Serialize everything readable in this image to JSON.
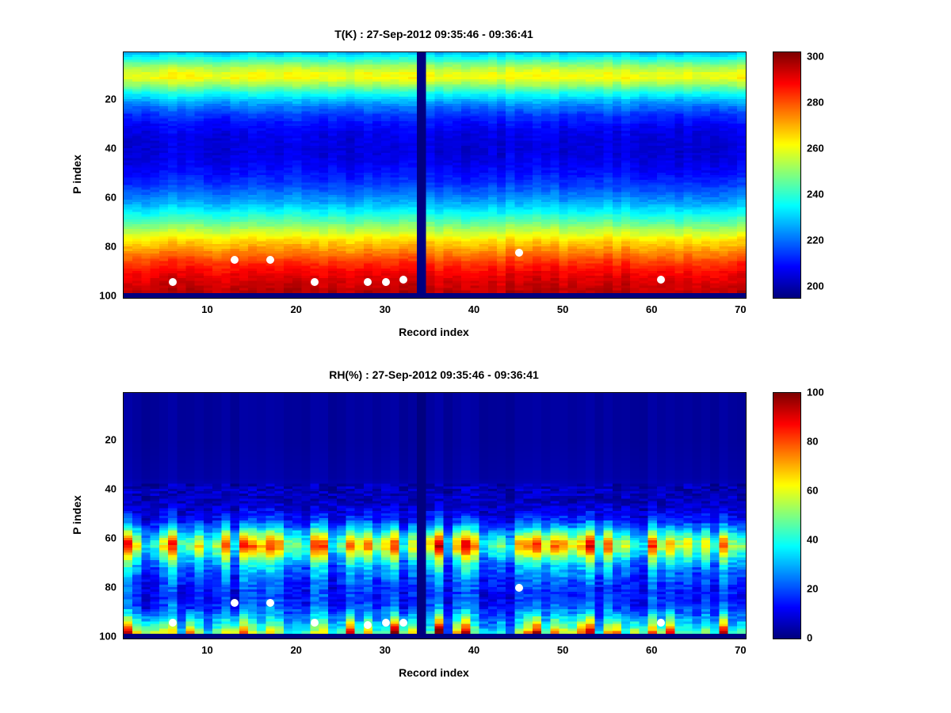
{
  "figure": {
    "background": "#ffffff"
  },
  "chart_data": [
    {
      "type": "heatmap",
      "title": "T(K) : 27-Sep-2012 09:35:46 - 09:36:41",
      "xlabel": "Record index",
      "ylabel": "P index",
      "x_range": [
        1,
        70
      ],
      "y_range": [
        1,
        100
      ],
      "y_axis_reversed": true,
      "x_ticks": [
        10,
        20,
        30,
        40,
        50,
        60,
        70
      ],
      "y_ticks": [
        20,
        40,
        60,
        80,
        100
      ],
      "clim": [
        195,
        302
      ],
      "colorbar_ticks": [
        200,
        220,
        240,
        260,
        280,
        300
      ],
      "colormap": "jet",
      "gap_columns": [
        34
      ],
      "missing_from_row": 99,
      "profile": [
        [
          1,
          229
        ],
        [
          3,
          238
        ],
        [
          5,
          247
        ],
        [
          7,
          254
        ],
        [
          9,
          260
        ],
        [
          11,
          261
        ],
        [
          13,
          254
        ],
        [
          15,
          246
        ],
        [
          17,
          238
        ],
        [
          20,
          228
        ],
        [
          23,
          220
        ],
        [
          26,
          214
        ],
        [
          30,
          209
        ],
        [
          34,
          206
        ],
        [
          38,
          205
        ],
        [
          42,
          205
        ],
        [
          46,
          207
        ],
        [
          50,
          210
        ],
        [
          54,
          214
        ],
        [
          58,
          220
        ],
        [
          62,
          227
        ],
        [
          66,
          236
        ],
        [
          70,
          246
        ],
        [
          74,
          257
        ],
        [
          78,
          267
        ],
        [
          82,
          275
        ],
        [
          86,
          283
        ],
        [
          90,
          289
        ],
        [
          94,
          293
        ],
        [
          98,
          296
        ]
      ],
      "col_noise": 2.5,
      "cell_noise": 2,
      "cell_noise_from": 1,
      "markers": [
        [
          6,
          94
        ],
        [
          13,
          85
        ],
        [
          17,
          85
        ],
        [
          22,
          94
        ],
        [
          28,
          94
        ],
        [
          30,
          94
        ],
        [
          32,
          93
        ],
        [
          45,
          82
        ],
        [
          61,
          93
        ]
      ],
      "marker_color": "#ffffff"
    },
    {
      "type": "heatmap",
      "title": "RH(%) : 27-Sep-2012 09:35:46 - 09:36:41",
      "xlabel": "Record index",
      "ylabel": "P index",
      "x_range": [
        1,
        70
      ],
      "y_range": [
        1,
        100
      ],
      "y_axis_reversed": true,
      "x_ticks": [
        10,
        20,
        30,
        40,
        50,
        60,
        70
      ],
      "y_ticks": [
        20,
        40,
        60,
        80,
        100
      ],
      "clim": [
        0,
        100
      ],
      "colorbar_ticks": [
        0,
        20,
        40,
        60,
        80,
        100
      ],
      "colormap": "jet",
      "gap_columns": [
        34
      ],
      "missing_from_row": 99,
      "profile": [
        [
          1,
          3
        ],
        [
          20,
          3
        ],
        [
          35,
          4
        ],
        [
          40,
          6
        ],
        [
          44,
          6
        ],
        [
          48,
          9
        ],
        [
          52,
          15
        ],
        [
          55,
          26
        ],
        [
          58,
          42
        ],
        [
          61,
          58
        ],
        [
          63,
          62
        ],
        [
          65,
          55
        ],
        [
          68,
          40
        ],
        [
          71,
          30
        ],
        [
          74,
          24
        ],
        [
          78,
          19
        ],
        [
          82,
          16
        ],
        [
          85,
          17
        ],
        [
          88,
          20
        ],
        [
          91,
          24
        ],
        [
          94,
          30
        ],
        [
          97,
          38
        ],
        [
          98,
          42
        ]
      ],
      "col_noise": 1.2,
      "cell_noise": 5,
      "cell_noise_from": 38,
      "band": {
        "rows": [
          48,
          98
        ],
        "col_gain": 0.55
      },
      "streaks": {
        "from_row": 88,
        "amp": 55
      },
      "markers": [
        [
          6,
          94
        ],
        [
          13,
          86
        ],
        [
          17,
          86
        ],
        [
          22,
          94
        ],
        [
          28,
          95
        ],
        [
          30,
          94
        ],
        [
          32,
          94
        ],
        [
          45,
          80
        ],
        [
          61,
          94
        ]
      ],
      "marker_color": "#ffffff"
    }
  ]
}
